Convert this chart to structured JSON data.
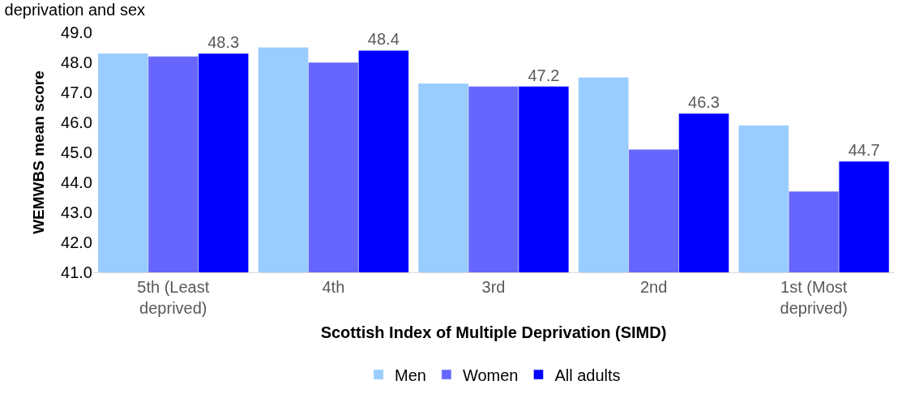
{
  "chart_data": {
    "type": "bar",
    "title": "deprivation and sex",
    "xlabel": "Scottish Index of Multiple Deprivation (SIMD)",
    "ylabel": "WEMWBS mean score",
    "categories": [
      "5th (Least deprived)",
      "4th",
      "3rd",
      "2nd",
      "1st (Most deprived)"
    ],
    "series": [
      {
        "name": "Men",
        "color": "#99ccff",
        "values": [
          48.3,
          48.5,
          47.3,
          47.5,
          45.9
        ]
      },
      {
        "name": "Women",
        "color": "#6666ff",
        "values": [
          48.2,
          48.0,
          47.2,
          45.1,
          43.7
        ]
      },
      {
        "name": "All adults",
        "color": "#0000ff",
        "values": [
          48.3,
          48.4,
          47.2,
          46.3,
          44.7
        ],
        "value_labels": [
          "48.3",
          "48.4",
          "47.2",
          "46.3",
          "44.7"
        ]
      }
    ],
    "ylim": [
      41,
      49
    ],
    "yticks": [
      {
        "value": 41,
        "label": "41.0"
      },
      {
        "value": 42,
        "label": "42.0"
      },
      {
        "value": 43,
        "label": "43.0"
      },
      {
        "value": 44,
        "label": "44.0"
      },
      {
        "value": 45,
        "label": "45.0"
      },
      {
        "value": 46,
        "label": "46.0"
      },
      {
        "value": 47,
        "label": "47.0"
      },
      {
        "value": 48,
        "label": "48.0"
      },
      {
        "value": 49,
        "label": "49.0"
      }
    ],
    "legend": "bottom"
  }
}
